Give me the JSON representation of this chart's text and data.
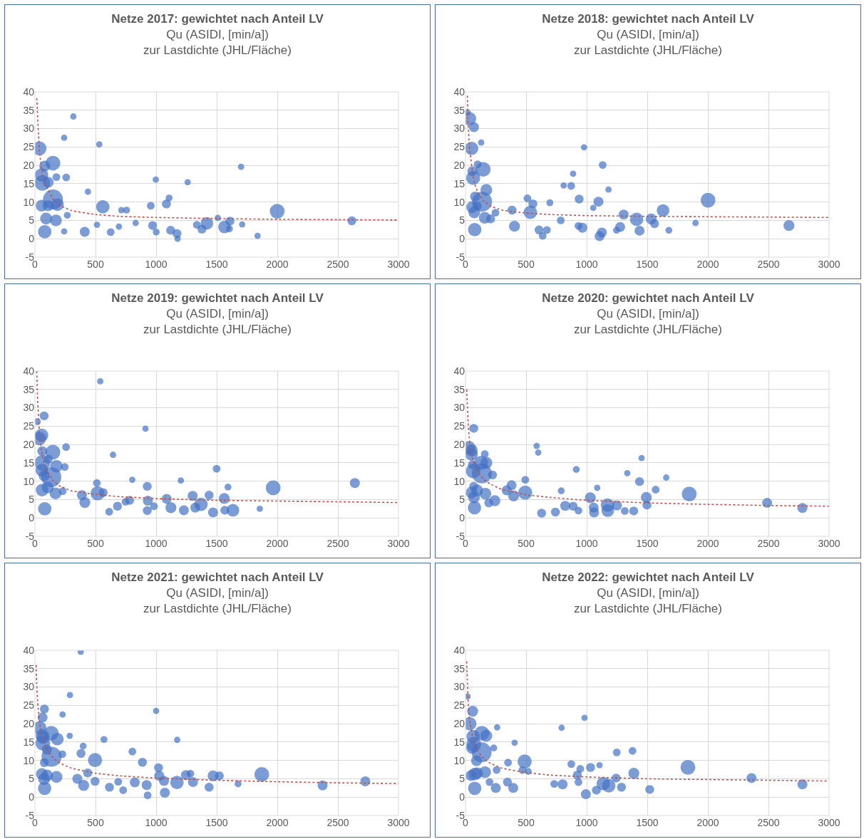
{
  "chart_data": [
    {
      "type": "bubble",
      "title": "Netze 2017: gewichtet nach Anteil LV",
      "subtitle": "Qu (ASIDI, [min/a])\nzur Lastdichte (JHL/Fläche)",
      "xlim": [
        0,
        3000
      ],
      "xticks": [
        0,
        500,
        1000,
        1500,
        2000,
        2500,
        3000
      ],
      "ylim": [
        -5,
        40
      ],
      "yticks": [
        -5,
        0,
        5,
        10,
        15,
        20,
        25,
        30,
        35,
        40
      ],
      "grid": true,
      "series": [
        {
          "color": "#4472c4",
          "x": [
            37,
            149,
            55,
            61,
            149,
            55,
            92,
            81,
            173,
            186,
            109,
            81,
            109,
            258,
            177,
            560,
            1999,
            1419,
            1564,
            2615,
            1609,
            1085,
            997,
            1701,
            317,
            1260,
            1107,
            956,
            411,
            1120,
            1378,
            1172,
            625,
            971,
            241,
            531,
            756,
            713,
            1509,
            693,
            1001,
            1605,
            512,
            437,
            1710,
            1336,
            831,
            1837,
            1177,
            241,
            267
          ],
          "values": [
            24.6,
            20.6,
            17.4,
            15.2,
            10.7,
            9.0,
            5.5,
            1.9,
            5.0,
            9.3,
            9.0,
            19.8,
            15.4,
            16.7,
            16.8,
            8.7,
            7.5,
            4.2,
            3.2,
            4.9,
            4.8,
            9.5,
            16.1,
            19.6,
            33.3,
            15.4,
            11.1,
            9.0,
            1.9,
            2.3,
            2.6,
            1.4,
            1.8,
            3.6,
            27.5,
            25.7,
            7.8,
            7.8,
            5.7,
            3.3,
            1.8,
            2.7,
            3.8,
            12.8,
            3.9,
            3.8,
            4.3,
            0.8,
            0,
            2.0,
            6.4
          ],
          "sizes": [
            0.5,
            0.55,
            0.45,
            0.6,
            1,
            0.35,
            0.35,
            0.45,
            0.35,
            0.4,
            0.3,
            0.3,
            0.3,
            0.15,
            0.15,
            0.45,
            0.55,
            0.4,
            0.4,
            0.2,
            0.2,
            0.2,
            0.1,
            0.1,
            0.1,
            0.1,
            0.12,
            0.15,
            0.25,
            0.2,
            0.2,
            0.2,
            0.15,
            0.2,
            0.1,
            0.1,
            0.12,
            0.1,
            0.1,
            0.1,
            0.12,
            0.12,
            0.1,
            0.1,
            0.1,
            0.15,
            0.1,
            0.1,
            0.1,
            0.1,
            0.12
          ]
        },
        {
          "type": "line",
          "color": "#c0504d",
          "line_style": "dotted",
          "x": [
            15,
            20,
            30,
            40,
            60,
            80,
            100,
            150,
            200,
            300,
            500,
            700,
            1000,
            1500,
            2000,
            2500,
            3000
          ],
          "values": [
            38.3,
            35,
            28,
            23,
            18,
            15.5,
            14,
            10.8,
            9.2,
            7.7,
            6.6,
            6.1,
            5.8,
            5.5,
            5.3,
            5.2,
            5.1
          ]
        }
      ]
    },
    {
      "type": "bubble",
      "title": "Netze 2018: gewichtet nach Anteil LV",
      "subtitle": "Qu (ASIDI, [min/a])\nzur Lastdichte (JHL/Fläche)",
      "xlim": [
        0,
        3000
      ],
      "xticks": [
        0,
        500,
        1000,
        1500,
        2000,
        2500,
        3000
      ],
      "ylim": [
        -5,
        40
      ],
      "yticks": [
        -5,
        0,
        5,
        10,
        15,
        20,
        25,
        30,
        35,
        40
      ],
      "grid": true,
      "series": [
        {
          "color": "#4472c4",
          "x": [
            33,
            50,
            63,
            57,
            70,
            17,
            146,
            137,
            172,
            159,
            55,
            72,
            76,
            100,
            79,
            98,
            535,
            2001,
            1630,
            1412,
            1532,
            2669,
            1097,
            1132,
            978,
            938,
            872,
            1180,
            1305,
            1125,
            1106,
            1436,
            1276,
            965,
            932,
            556,
            404,
            384,
            511,
            696,
            607,
            672,
            637,
            129,
            888,
            1560,
            1246,
            1054,
            810,
            786,
            1678,
            1898,
            207,
            247
          ],
          "values": [
            32.7,
            24.6,
            16.6,
            18.4,
            30.4,
            34.4,
            18.9,
            10.1,
            13.3,
            5.7,
            8.6,
            7.2,
            2.5,
            20.3,
            11.5,
            8.9,
            7.2,
            10.5,
            7.7,
            5.3,
            5.4,
            3.6,
            10.1,
            20.1,
            24.9,
            10.8,
            14.4,
            13.4,
            6.6,
            1.7,
            0.7,
            2.2,
            3.2,
            3.0,
            3.5,
            9.5,
            3.4,
            7.8,
            11.0,
            9.8,
            2.4,
            2.4,
            0.8,
            26.2,
            17.7,
            4.1,
            2.3,
            8.4,
            14.5,
            5.0,
            2.3,
            4.3,
            5.4,
            7.1
          ],
          "sizes": [
            0.45,
            0.45,
            0.5,
            0.25,
            0.25,
            0.1,
            0.55,
            1,
            0.35,
            0.35,
            0.35,
            0.35,
            0.45,
            0.15,
            0.25,
            0.2,
            0.45,
            0.55,
            0.4,
            0.45,
            0.3,
            0.3,
            0.25,
            0.15,
            0.1,
            0.2,
            0.15,
            0.1,
            0.25,
            0.25,
            0.25,
            0.25,
            0.25,
            0.25,
            0.15,
            0.2,
            0.3,
            0.2,
            0.15,
            0.12,
            0.2,
            0.15,
            0.15,
            0.1,
            0.1,
            0.2,
            0.12,
            0.1,
            0.1,
            0.15,
            0.12,
            0.1,
            0.2,
            0.15
          ]
        },
        {
          "type": "line",
          "color": "#c0504d",
          "line_style": "dotted",
          "x": [
            15,
            20,
            30,
            40,
            60,
            80,
            100,
            150,
            200,
            300,
            500,
            700,
            1000,
            1500,
            2000,
            2500,
            3000
          ],
          "values": [
            39,
            33,
            26,
            23,
            17.5,
            14.5,
            12.8,
            10.3,
            9,
            7.8,
            7.0,
            6.6,
            6.3,
            6.1,
            6.0,
            5.9,
            5.8
          ]
        }
      ]
    },
    {
      "type": "bubble",
      "title": "Netze 2019: gewichtet nach Anteil LV",
      "subtitle": "Qu (ASIDI, [min/a])\nzur Lastdichte (JHL/Fläche)",
      "xlim": [
        0,
        3000
      ],
      "xticks": [
        0,
        500,
        1000,
        1500,
        2000,
        2500,
        3000
      ],
      "ylim": [
        -5,
        40
      ],
      "yticks": [
        -5,
        0,
        5,
        10,
        15,
        20,
        25,
        30,
        35,
        40
      ],
      "grid": true,
      "series": [
        {
          "color": "#4472c4",
          "x": [
            20,
            37,
            55,
            61,
            61,
            57,
            135,
            148,
            177,
            170,
            59,
            105,
            81,
            76,
            76,
            109,
            257,
            246,
            517,
            1966,
            2640,
            1370,
            1634,
            1562,
            1499,
            927,
            932,
            1087,
            1122,
            1229,
            1301,
            1323,
            1470,
            1567,
            1593,
            1437,
            912,
            539,
            644,
            803,
            1204,
            412,
            388,
            511,
            563,
            927,
            982,
            681,
            781,
            748,
            613,
            1855,
            229
          ],
          "values": [
            26.2,
            21.6,
            22.5,
            18.2,
            15.0,
            13.0,
            11.1,
            17.9,
            14.1,
            6.7,
            7.6,
            8.3,
            2.5,
            27.8,
            11.5,
            16.0,
            19.3,
            13.9,
            6.7,
            8.2,
            9.5,
            3.7,
            2.1,
            5.3,
            13.4,
            8.6,
            4.7,
            5.2,
            2.8,
            2.1,
            6.0,
            2.8,
            1.5,
            2.1,
            8.4,
            6.2,
            24.3,
            37.2,
            17.2,
            10.4,
            10.2,
            4.2,
            6.2,
            9.5,
            6.9,
            2.0,
            3.2,
            3.2,
            4.8,
            4.4,
            1.7,
            2.5,
            7.3
          ],
          "sizes": [
            0.12,
            0.45,
            0.45,
            0.25,
            0.6,
            0.4,
            1,
            0.55,
            0.4,
            0.35,
            0.4,
            0.35,
            0.45,
            0.2,
            0.3,
            0.2,
            0.15,
            0.15,
            0.5,
            0.55,
            0.25,
            0.45,
            0.4,
            0.3,
            0.15,
            0.2,
            0.25,
            0.25,
            0.3,
            0.25,
            0.25,
            0.25,
            0.25,
            0.2,
            0.12,
            0.2,
            0.1,
            0.1,
            0.1,
            0.1,
            0.1,
            0.3,
            0.25,
            0.15,
            0.2,
            0.2,
            0.15,
            0.2,
            0.2,
            0.15,
            0.15,
            0.1,
            0.15
          ]
        },
        {
          "type": "line",
          "color": "#c0504d",
          "line_style": "dotted",
          "x": [
            15,
            20,
            30,
            40,
            60,
            80,
            100,
            150,
            200,
            300,
            500,
            700,
            1000,
            1500,
            2000,
            2500,
            3000
          ],
          "values": [
            40,
            34,
            27,
            22,
            17,
            14.5,
            12.8,
            10.2,
            8.8,
            7.4,
            6.4,
            5.8,
            5.3,
            4.8,
            4.6,
            4.4,
            4.2
          ]
        }
      ]
    },
    {
      "type": "bubble",
      "title": "Netze 2020: gewichtet nach Anteil LV",
      "subtitle": "Qu (ASIDI, [min/a])\nzur Lastdichte (JHL/Fläche)",
      "xlim": [
        0,
        3000
      ],
      "xticks": [
        0,
        500,
        1000,
        1500,
        2000,
        2500,
        3000
      ],
      "ylim": [
        -5,
        40
      ],
      "yticks": [
        -5,
        0,
        5,
        10,
        15,
        20,
        25,
        30,
        35,
        40
      ],
      "grid": true,
      "series": [
        {
          "color": "#4472c4",
          "x": [
            28,
            50,
            52,
            68,
            63,
            129,
            135,
            172,
            159,
            50,
            70,
            74,
            96,
            164,
            57,
            68,
            493,
            1846,
            1172,
            1174,
            1030,
            1492,
            2489,
            2780,
            1436,
            914,
            1335,
            1656,
            1569,
            1250,
            1058,
            1061,
            1388,
            1314,
            1497,
            397,
            340,
            380,
            493,
            823,
            742,
            628,
            888,
            223,
            242,
            192,
            587,
            600,
            1453,
            1087,
            790,
            932
          ],
          "values": [
            19.1,
            17.3,
            18.4,
            24.4,
            12.8,
            15.0,
            12.1,
            15.0,
            17.4,
            6.9,
            5.6,
            2.8,
            7.5,
            6.6,
            14.5,
            8.6,
            6.9,
            6.5,
            3.5,
            2.0,
            5.5,
            5.6,
            4.1,
            2.7,
            9.9,
            13.2,
            12.2,
            11.0,
            7.7,
            3.4,
            2.8,
            1.5,
            1.9,
            1.9,
            3.5,
            6.0,
            7.5,
            8.9,
            10.4,
            3.3,
            1.6,
            1.3,
            3.2,
            11.7,
            4.7,
            4.1,
            19.6,
            17.8,
            16.3,
            8.2,
            7.4,
            2.0
          ],
          "sizes": [
            0.45,
            0.4,
            0.35,
            0.2,
            0.55,
            0.5,
            1,
            0.35,
            0.15,
            0.35,
            0.35,
            0.45,
            0.35,
            0.35,
            0.2,
            0.2,
            0.5,
            0.55,
            0.45,
            0.4,
            0.3,
            0.3,
            0.25,
            0.25,
            0.2,
            0.12,
            0.1,
            0.1,
            0.15,
            0.25,
            0.25,
            0.25,
            0.2,
            0.15,
            0.2,
            0.3,
            0.25,
            0.25,
            0.15,
            0.25,
            0.2,
            0.2,
            0.2,
            0.2,
            0.3,
            0.2,
            0.1,
            0.1,
            0.1,
            0.1,
            0.12,
            0.15
          ]
        },
        {
          "type": "line",
          "color": "#c0504d",
          "line_style": "dotted",
          "x": [
            10,
            15,
            20,
            30,
            40,
            60,
            80,
            100,
            150,
            200,
            300,
            500,
            700,
            1000,
            1500,
            2000,
            2500,
            3000
          ],
          "values": [
            35,
            31,
            27,
            22,
            19.5,
            16,
            14,
            12.6,
            10.6,
            9.3,
            7.8,
            6.3,
            5.6,
            4.8,
            4.1,
            3.7,
            3.4,
            3.2
          ]
        }
      ]
    },
    {
      "type": "bubble",
      "title": "Netze 2021: gewichtet nach Anteil LV",
      "subtitle": "Qu (ASIDI, [min/a])\nzur Lastdichte (JHL/Fläche)",
      "xlim": [
        0,
        3000
      ],
      "xticks": [
        0,
        500,
        1000,
        1500,
        2000,
        2500,
        3000
      ],
      "ylim": [
        -5,
        40
      ],
      "yticks": [
        -5,
        0,
        5,
        10,
        15,
        20,
        25,
        30,
        35,
        40
      ],
      "grid": true,
      "series": [
        {
          "color": "#4472c4",
          "x": [
            39,
            61,
            67,
            65,
            63,
            78,
            135,
            185,
            137,
            98,
            78,
            57,
            100,
            76,
            80,
            178,
            496,
            1872,
            1172,
            2374,
            2726,
            1470,
            1522,
            1026,
            1020,
            1065,
            1246,
            1304,
            1437,
            1072,
            887,
            804,
            1174,
            1000,
            378,
            289,
            228,
            287,
            380,
            398,
            570,
            402,
            350,
            435,
            496,
            824,
            922,
            615,
            687,
            728,
            930,
            226,
            1676,
            1283
          ],
          "values": [
            18.9,
            16.7,
            16.2,
            14.7,
            21.7,
            24.0,
            17.4,
            15.8,
            11.0,
            13.0,
            9.4,
            6.3,
            5.9,
            4.9,
            2.4,
            5.5,
            10.1,
            6.2,
            4.0,
            3.2,
            4.3,
            5.8,
            5.8,
            5.8,
            8.0,
            4.4,
            6.0,
            4.1,
            2.7,
            1.2,
            9.5,
            12.4,
            15.6,
            23.5,
            39.6,
            27.8,
            22.5,
            16.7,
            11.9,
            13.9,
            15.7,
            3.2,
            5.0,
            6.6,
            4.3,
            4.0,
            3.3,
            2.7,
            4.2,
            1.9,
            0.5,
            11.7,
            3.6,
            6.4
          ],
          "sizes": [
            0.45,
            0.45,
            0.4,
            0.55,
            0.25,
            0.2,
            0.55,
            0.4,
            1,
            0.25,
            0.2,
            0.35,
            0.35,
            0.35,
            0.45,
            0.35,
            0.5,
            0.55,
            0.45,
            0.25,
            0.25,
            0.3,
            0.2,
            0.25,
            0.2,
            0.25,
            0.25,
            0.25,
            0.2,
            0.25,
            0.2,
            0.15,
            0.1,
            0.1,
            0.1,
            0.1,
            0.1,
            0.1,
            0.2,
            0.12,
            0.12,
            0.3,
            0.25,
            0.2,
            0.2,
            0.25,
            0.25,
            0.2,
            0.15,
            0.15,
            0.15,
            0.15,
            0.12,
            0.15
          ]
        },
        {
          "type": "line",
          "color": "#c0504d",
          "line_style": "dotted",
          "x": [
            10,
            15,
            20,
            30,
            40,
            60,
            80,
            100,
            150,
            200,
            300,
            500,
            700,
            1000,
            1500,
            2000,
            2500,
            3000
          ],
          "values": [
            36,
            31,
            27,
            23,
            20,
            16.5,
            14.5,
            12.8,
            10.7,
            9.4,
            7.9,
            6.5,
            5.8,
            5.2,
            4.6,
            4.2,
            3.9,
            3.7
          ]
        }
      ]
    },
    {
      "type": "bubble",
      "title": "Netze 2022: gewichtet nach Anteil LV",
      "subtitle": "Qu (ASIDI, [min/a])\nzur Lastdichte (JHL/Fläche)",
      "xlim": [
        0,
        3000
      ],
      "xticks": [
        0,
        500,
        1000,
        1500,
        2000,
        2500,
        3000
      ],
      "ylim": [
        -5,
        40
      ],
      "yticks": [
        -5,
        0,
        5,
        10,
        15,
        20,
        25,
        30,
        35,
        40
      ],
      "grid": true,
      "series": [
        {
          "color": "#4472c4",
          "x": [
            17,
            35,
            59,
            63,
            68,
            54,
            135,
            172,
            133,
            91,
            46,
            76,
            96,
            76,
            161,
            488,
            1835,
            1137,
            1182,
            2360,
            2780,
            1389,
            1378,
            1248,
            1287,
            1243,
            1520,
            1080,
            993,
            1032,
            873,
            947,
            923,
            793,
            982,
            261,
            351,
            405,
            394,
            346,
            250,
            233,
            257,
            801,
            470,
            518,
            732,
            932,
            198,
            1106
          ],
          "values": [
            27.4,
            20.0,
            23.4,
            16.5,
            14.4,
            13.4,
            17.4,
            16.7,
            12.2,
            9.9,
            5.9,
            6.3,
            6.5,
            2.4,
            6.8,
            9.7,
            8.1,
            3.7,
            3.1,
            5.2,
            3.5,
            6.5,
            12.6,
            12.2,
            2.7,
            5.2,
            2.1,
            1.9,
            0.8,
            8.1,
            9.0,
            7.7,
            6.0,
            18.9,
            21.6,
            19.0,
            9.4,
            14.8,
            2.5,
            4.1,
            2.5,
            13.4,
            7.4,
            3.5,
            7.4,
            7.0,
            3.6,
            4.1,
            4.1,
            8.7
          ],
          "sizes": [
            0.1,
            0.45,
            0.3,
            0.45,
            0.55,
            0.35,
            0.55,
            0.35,
            1,
            0.3,
            0.3,
            0.4,
            0.35,
            0.45,
            0.35,
            0.5,
            0.55,
            0.45,
            0.45,
            0.25,
            0.25,
            0.3,
            0.15,
            0.15,
            0.2,
            0.2,
            0.2,
            0.2,
            0.25,
            0.2,
            0.15,
            0.15,
            0.2,
            0.1,
            0.1,
            0.1,
            0.15,
            0.1,
            0.25,
            0.2,
            0.25,
            0.12,
            0.15,
            0.25,
            0.15,
            0.12,
            0.15,
            0.15,
            0.15,
            0.1
          ]
        },
        {
          "type": "line",
          "color": "#c0504d",
          "line_style": "dotted",
          "x": [
            10,
            15,
            20,
            30,
            40,
            60,
            80,
            100,
            150,
            200,
            300,
            500,
            700,
            1000,
            1500,
            2000,
            2500,
            3000
          ],
          "values": [
            37,
            32,
            27.5,
            22,
            19.8,
            16.2,
            14,
            12.6,
            10.6,
            9.3,
            7.9,
            6.7,
            6.0,
            5.5,
            5.0,
            4.8,
            4.6,
            4.4
          ]
        }
      ]
    }
  ]
}
